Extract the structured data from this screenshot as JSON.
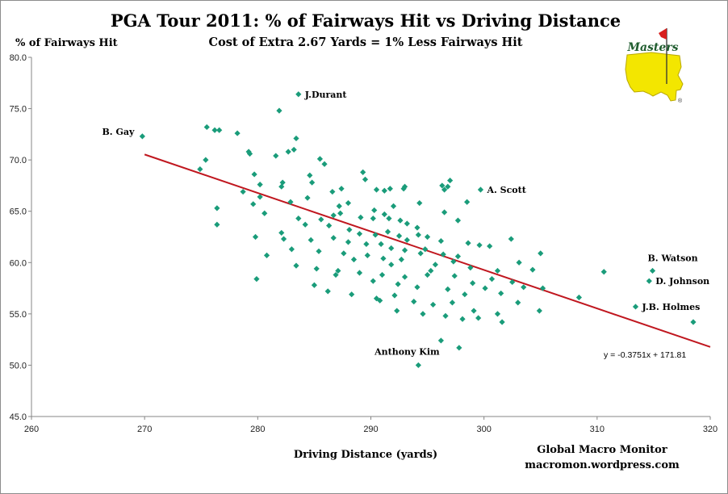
{
  "chart_data": {
    "type": "scatter",
    "title": "PGA Tour 2011:  % of Fairways Hit vs Driving Distance",
    "subtitle": "Cost of Extra 2.67 Yards  =  1% Less Fairways Hit",
    "xlabel": "Driving Distance (yards)",
    "ylabel": "% of Fairways Hit",
    "xlim": [
      260,
      320
    ],
    "ylim": [
      45,
      80
    ],
    "xticks": [
      260,
      270,
      280,
      290,
      300,
      310,
      320
    ],
    "yticks": [
      "45.0",
      "50.0",
      "55.0",
      "60.0",
      "65.0",
      "70.0",
      "75.0",
      "80.0"
    ],
    "grid": false,
    "marker_color": "#1a9c7a",
    "trendline": {
      "slope": -0.3751,
      "intercept": 171.81,
      "x_range": [
        270,
        320
      ],
      "color": "#c0171f",
      "equation_label": "y = -0.3751x + 171.81"
    },
    "annotations": [
      {
        "label": "J.Durant",
        "x": 283.6,
        "y": 76.4
      },
      {
        "label": "B. Gay",
        "x": 269.8,
        "y": 72.3
      },
      {
        "label": "A. Scott",
        "x": 299.7,
        "y": 67.1
      },
      {
        "label": "B. Watson",
        "x": 314.9,
        "y": 59.2
      },
      {
        "label": "D. Johnson",
        "x": 314.6,
        "y": 58.2
      },
      {
        "label": "J.B. Holmes",
        "x": 313.4,
        "y": 55.7
      },
      {
        "label": "Anthony Kim",
        "x": 294.2,
        "y": 50.0
      }
    ],
    "points": [
      [
        283.6,
        76.4
      ],
      [
        269.8,
        72.3
      ],
      [
        299.7,
        67.1
      ],
      [
        314.9,
        59.2
      ],
      [
        314.6,
        58.2
      ],
      [
        313.4,
        55.7
      ],
      [
        294.2,
        50.0
      ],
      [
        318.5,
        54.2
      ],
      [
        310.6,
        59.1
      ],
      [
        308.4,
        56.6
      ],
      [
        281.9,
        74.8
      ],
      [
        275.5,
        73.2
      ],
      [
        276.2,
        72.9
      ],
      [
        276.6,
        72.9
      ],
      [
        278.2,
        72.6
      ],
      [
        283.4,
        72.1
      ],
      [
        283.2,
        71.0
      ],
      [
        279.2,
        70.8
      ],
      [
        279.3,
        70.6
      ],
      [
        275.4,
        70.0
      ],
      [
        281.6,
        70.4
      ],
      [
        282.7,
        70.8
      ],
      [
        285.5,
        70.1
      ],
      [
        285.9,
        69.6
      ],
      [
        274.9,
        69.1
      ],
      [
        289.3,
        68.8
      ],
      [
        289.5,
        68.1
      ],
      [
        279.7,
        68.6
      ],
      [
        280.2,
        67.6
      ],
      [
        282.2,
        67.8
      ],
      [
        282.1,
        67.4
      ],
      [
        284.6,
        68.5
      ],
      [
        284.8,
        67.8
      ],
      [
        286.6,
        66.9
      ],
      [
        287.4,
        67.2
      ],
      [
        290.5,
        67.1
      ],
      [
        291.2,
        67.0
      ],
      [
        291.7,
        67.2
      ],
      [
        293.0,
        67.4
      ],
      [
        292.9,
        67.2
      ],
      [
        296.3,
        67.5
      ],
      [
        297.0,
        68.0
      ],
      [
        296.8,
        67.4
      ],
      [
        296.5,
        67.1
      ],
      [
        298.5,
        65.9
      ],
      [
        278.7,
        66.9
      ],
      [
        276.4,
        65.3
      ],
      [
        280.2,
        66.4
      ],
      [
        279.6,
        65.7
      ],
      [
        282.9,
        65.9
      ],
      [
        284.4,
        66.3
      ],
      [
        287.2,
        65.5
      ],
      [
        288.0,
        65.8
      ],
      [
        292.0,
        65.5
      ],
      [
        294.3,
        65.8
      ],
      [
        296.5,
        64.9
      ],
      [
        297.7,
        64.1
      ],
      [
        280.6,
        64.8
      ],
      [
        283.6,
        64.3
      ],
      [
        285.6,
        64.2
      ],
      [
        286.7,
        64.6
      ],
      [
        287.3,
        64.8
      ],
      [
        289.1,
        64.4
      ],
      [
        290.2,
        64.3
      ],
      [
        290.3,
        65.1
      ],
      [
        291.2,
        64.7
      ],
      [
        291.6,
        64.3
      ],
      [
        292.6,
        64.1
      ],
      [
        293.2,
        63.8
      ],
      [
        294.1,
        63.4
      ],
      [
        276.4,
        63.7
      ],
      [
        282.1,
        62.9
      ],
      [
        284.2,
        63.7
      ],
      [
        286.3,
        63.6
      ],
      [
        288.1,
        63.2
      ],
      [
        289.0,
        62.8
      ],
      [
        290.4,
        62.7
      ],
      [
        291.5,
        63.0
      ],
      [
        292.5,
        62.6
      ],
      [
        293.2,
        62.2
      ],
      [
        294.2,
        62.7
      ],
      [
        295.0,
        62.5
      ],
      [
        296.2,
        62.1
      ],
      [
        279.8,
        62.5
      ],
      [
        282.3,
        62.3
      ],
      [
        284.7,
        62.2
      ],
      [
        286.7,
        62.4
      ],
      [
        288.0,
        62.0
      ],
      [
        289.6,
        61.8
      ],
      [
        290.9,
        61.8
      ],
      [
        291.8,
        61.4
      ],
      [
        293.0,
        61.2
      ],
      [
        294.8,
        61.3
      ],
      [
        296.4,
        60.8
      ],
      [
        297.7,
        60.6
      ],
      [
        298.6,
        61.9
      ],
      [
        299.6,
        61.7
      ],
      [
        300.5,
        61.6
      ],
      [
        302.4,
        62.3
      ],
      [
        280.8,
        60.7
      ],
      [
        283.0,
        61.3
      ],
      [
        285.4,
        61.1
      ],
      [
        287.6,
        60.9
      ],
      [
        289.7,
        60.7
      ],
      [
        291.1,
        60.4
      ],
      [
        292.7,
        60.3
      ],
      [
        294.4,
        60.9
      ],
      [
        295.7,
        59.8
      ],
      [
        297.3,
        60.1
      ],
      [
        298.8,
        59.5
      ],
      [
        301.2,
        59.2
      ],
      [
        303.1,
        60.0
      ],
      [
        304.3,
        59.3
      ],
      [
        305.0,
        60.9
      ],
      [
        283.4,
        59.7
      ],
      [
        285.2,
        59.4
      ],
      [
        287.1,
        59.2
      ],
      [
        289.0,
        59.0
      ],
      [
        291.0,
        58.8
      ],
      [
        293.0,
        58.6
      ],
      [
        295.0,
        58.8
      ],
      [
        297.4,
        58.7
      ],
      [
        299.0,
        58.0
      ],
      [
        300.7,
        58.4
      ],
      [
        302.5,
        58.1
      ],
      [
        303.5,
        57.6
      ],
      [
        279.9,
        58.4
      ],
      [
        285.0,
        57.8
      ],
      [
        286.2,
        57.2
      ],
      [
        288.3,
        56.9
      ],
      [
        290.5,
        56.5
      ],
      [
        292.1,
        56.8
      ],
      [
        293.8,
        56.2
      ],
      [
        295.5,
        55.9
      ],
      [
        297.2,
        56.1
      ],
      [
        299.1,
        55.3
      ],
      [
        301.2,
        55.0
      ],
      [
        303.0,
        56.1
      ],
      [
        305.2,
        57.5
      ],
      [
        292.3,
        55.3
      ],
      [
        294.6,
        55.0
      ],
      [
        296.6,
        54.8
      ],
      [
        298.1,
        54.5
      ],
      [
        299.5,
        54.6
      ],
      [
        301.6,
        54.2
      ],
      [
        304.9,
        55.3
      ],
      [
        296.2,
        52.4
      ],
      [
        297.8,
        51.7
      ],
      [
        295.3,
        59.2
      ],
      [
        291.8,
        59.8
      ],
      [
        290.2,
        58.2
      ],
      [
        288.5,
        60.3
      ],
      [
        296.8,
        57.4
      ],
      [
        298.3,
        56.9
      ],
      [
        300.1,
        57.5
      ],
      [
        301.5,
        57.0
      ],
      [
        294.1,
        57.6
      ],
      [
        292.4,
        57.9
      ],
      [
        290.8,
        56.3
      ],
      [
        286.9,
        58.8
      ]
    ]
  },
  "branding": {
    "credit_line1": "Global Macro Monitor",
    "credit_line2": "macromon.wordpress.com",
    "logo_text": "Masters",
    "logo_mark": "®"
  }
}
